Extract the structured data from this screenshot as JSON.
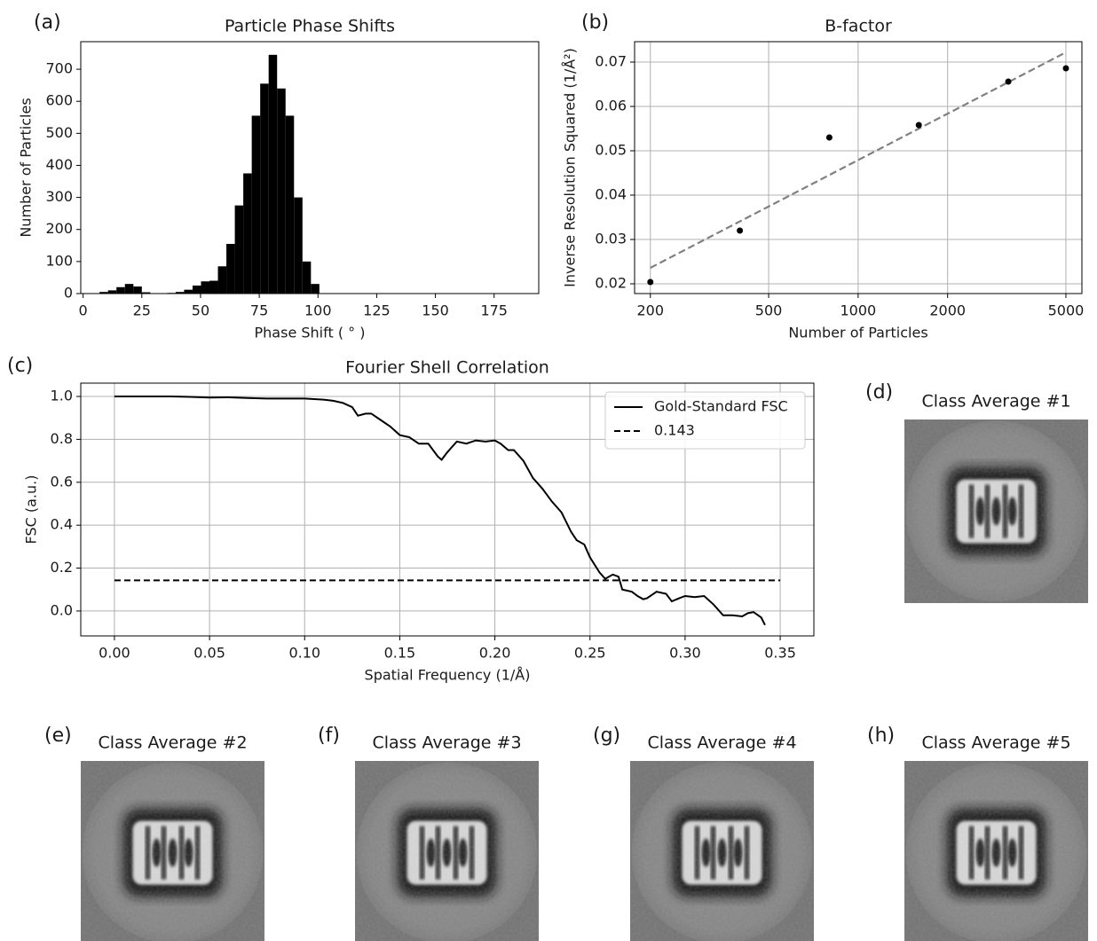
{
  "chart_data": [
    {
      "type": "histogram",
      "label": "(a)",
      "title": "Particle Phase Shifts",
      "xlabel": "Phase Shift ( ° )",
      "ylabel": "Number of Particles",
      "bins": [
        7,
        10.6,
        14.2,
        17.8,
        21.4,
        25,
        28.6,
        32.2,
        35.8,
        39.4,
        43,
        46.6,
        50.2,
        53.8,
        57.4,
        61,
        64.6,
        68.2,
        71.8,
        75.4,
        79,
        82.6,
        86.2,
        89.8,
        93.4,
        97,
        100.6
      ],
      "values": [
        5,
        10,
        20,
        30,
        22,
        4,
        0,
        0,
        2,
        5,
        12,
        25,
        38,
        40,
        85,
        155,
        275,
        375,
        555,
        655,
        745,
        640,
        555,
        300,
        100,
        30
      ],
      "color": "#000000",
      "xlim": [
        -1,
        194
      ],
      "ylim": [
        0,
        786
      ],
      "xticks": [
        0,
        25,
        50,
        75,
        100,
        125,
        150,
        175
      ],
      "yticks": [
        0,
        100,
        200,
        300,
        400,
        500,
        600,
        700
      ],
      "grid": false
    },
    {
      "type": "scatter",
      "label": "(b)",
      "title": "B-factor",
      "xlabel": "Number of Particles",
      "ylabel": "Inverse Resolution Squared (1/Å²)",
      "x": [
        200,
        400,
        800,
        1600,
        3200,
        5000
      ],
      "values": [
        0.0204,
        0.032,
        0.053,
        0.0558,
        0.0656,
        0.0686
      ],
      "color": "#000000",
      "fit": {
        "x": [
          200,
          5000
        ],
        "values": [
          0.0236,
          0.0722
        ],
        "color": "#808080",
        "dash": true
      },
      "xscale": "log",
      "xlim": [
        177,
        5660
      ],
      "ylim": [
        0.0178,
        0.0746
      ],
      "xticks": [
        200,
        500,
        1000,
        2000,
        5000
      ],
      "yticks": [
        0.02,
        0.03,
        0.04,
        0.05,
        0.06,
        0.07
      ],
      "grid": true
    },
    {
      "type": "line",
      "label": "(c)",
      "title": "Fourier Shell Correlation",
      "xlabel": "Spatial Frequency (1/Å)",
      "ylabel": "FSC (a.u.)",
      "x": [
        0,
        0.01,
        0.02,
        0.03,
        0.04,
        0.05,
        0.06,
        0.07,
        0.08,
        0.09,
        0.1,
        0.11,
        0.115,
        0.12,
        0.125,
        0.128,
        0.132,
        0.135,
        0.14,
        0.145,
        0.15,
        0.155,
        0.16,
        0.165,
        0.17,
        0.172,
        0.175,
        0.18,
        0.185,
        0.19,
        0.195,
        0.2,
        0.203,
        0.207,
        0.21,
        0.215,
        0.22,
        0.225,
        0.23,
        0.235,
        0.24,
        0.243,
        0.247,
        0.25,
        0.255,
        0.258,
        0.262,
        0.265,
        0.267,
        0.272,
        0.275,
        0.278,
        0.28,
        0.285,
        0.29,
        0.293,
        0.297,
        0.3,
        0.305,
        0.31,
        0.315,
        0.32,
        0.325,
        0.33,
        0.333,
        0.336,
        0.34,
        0.342
      ],
      "series": [
        {
          "name": "Gold-Standard FSC",
          "color": "#000000",
          "values": [
            1.0,
            1.0,
            1.0,
            1.0,
            0.998,
            0.995,
            0.996,
            0.993,
            0.99,
            0.99,
            0.99,
            0.985,
            0.98,
            0.97,
            0.95,
            0.91,
            0.92,
            0.92,
            0.89,
            0.86,
            0.82,
            0.81,
            0.78,
            0.78,
            0.72,
            0.705,
            0.74,
            0.79,
            0.78,
            0.795,
            0.79,
            0.795,
            0.78,
            0.75,
            0.75,
            0.7,
            0.62,
            0.57,
            0.51,
            0.46,
            0.37,
            0.33,
            0.31,
            0.25,
            0.18,
            0.15,
            0.17,
            0.16,
            0.1,
            0.09,
            0.07,
            0.055,
            0.06,
            0.09,
            0.08,
            0.045,
            0.06,
            0.07,
            0.065,
            0.07,
            0.03,
            -0.02,
            -0.02,
            -0.025,
            -0.01,
            -0.005,
            -0.03,
            -0.065
          ]
        },
        {
          "name": "0.143",
          "color": "#000000",
          "dash": true,
          "x": [
            0,
            0.35
          ],
          "values": [
            0.143,
            0.143
          ]
        }
      ],
      "xlim": [
        -0.0177,
        0.3677
      ],
      "ylim": [
        -0.116,
        1.062
      ],
      "xticks": [
        {
          "value": 0,
          "label": "0.00"
        },
        0.05,
        {
          "value": 0.1,
          "label": "0.10"
        },
        0.15,
        {
          "value": 0.2,
          "label": "0.20"
        },
        0.25,
        {
          "value": 0.3,
          "label": "0.30"
        },
        0.35
      ],
      "yticks": [
        {
          "value": 0,
          "label": "0.0"
        },
        0.2,
        0.4,
        0.6,
        0.8,
        {
          "value": 1,
          "label": "1.0"
        }
      ],
      "grid": true,
      "legend": "upper right"
    }
  ],
  "class_averages": [
    {
      "label": "(d)",
      "title": "Class Average #1"
    },
    {
      "label": "(e)",
      "title": "Class Average #2"
    },
    {
      "label": "(f)",
      "title": "Class Average #3"
    },
    {
      "label": "(g)",
      "title": "Class Average #4"
    },
    {
      "label": "(h)",
      "title": "Class Average #5"
    }
  ]
}
